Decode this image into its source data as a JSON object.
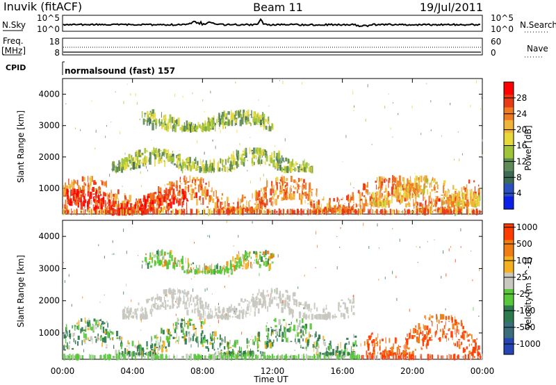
{
  "header": {
    "title": "Inuvik (fitACF)",
    "beam": "Beam 11",
    "date": "19/Jul/2011"
  },
  "status_panels": {
    "nsky": {
      "left_label": "N.Sky",
      "right_label": "N.Search",
      "left_ticks": [
        "10^5",
        "10^0"
      ],
      "right_ticks": [
        "10^5",
        "10^0"
      ]
    },
    "freq": {
      "left_label_1": "Freq.",
      "left_label_2": "[MHz]",
      "right_label": "Nave",
      "left_ticks": [
        "18",
        "8"
      ],
      "right_ticks": [
        "60",
        "0"
      ]
    },
    "cpid": {
      "label": "CPID",
      "value": "normalsound (fast) 157"
    }
  },
  "chart_data": [
    {
      "type": "heatmap",
      "title": "Power",
      "ylabel": "Slant Range [km]",
      "xlabel": "",
      "x_ticks": [
        "00:00",
        "04:00",
        "08:00",
        "12:00",
        "16:00",
        "20:00",
        "00:00"
      ],
      "x_range_hours": [
        0,
        24
      ],
      "y_ticks": [
        1000,
        2000,
        3000,
        4000
      ],
      "ylim": [
        180,
        4500
      ],
      "colorbar": {
        "label": "Power [dB]",
        "ticks": [
          4,
          8,
          12,
          16,
          20,
          24,
          28
        ],
        "range": [
          0,
          32
        ],
        "colors": [
          "#0b1fe6",
          "#2a4fbf",
          "#3d6a55",
          "#5f8b59",
          "#9fc43a",
          "#e7d83c",
          "#f0b43a",
          "#f07a1f",
          "#e83a16",
          "#ff0000"
        ]
      },
      "features": [
        {
          "name": "near_range_main",
          "start": 0.0,
          "end": 23.8,
          "lower_km": 300,
          "upper_km": 1300,
          "level": 24
        },
        {
          "name": "strong_red_band",
          "start": 0.2,
          "end": 7.1,
          "lower_km": 250,
          "upper_km": 900,
          "level": 28
        },
        {
          "name": "mid_band",
          "start": 2.8,
          "end": 14.2,
          "lower_km": 1600,
          "upper_km": 2200,
          "level": 14
        },
        {
          "name": "upper_cluster",
          "start": 4.5,
          "end": 12.0,
          "lower_km": 2900,
          "upper_km": 3400,
          "level": 14
        },
        {
          "name": "late_band",
          "start": 17.6,
          "end": 23.8,
          "lower_km": 500,
          "upper_km": 1300,
          "level": 20
        }
      ]
    },
    {
      "type": "heatmap",
      "title": "Velocity",
      "ylabel": "Slant Range [km]",
      "xlabel": "Time UT",
      "x_ticks": [
        "00:00",
        "04:00",
        "08:00",
        "12:00",
        "16:00",
        "20:00",
        "00:00"
      ],
      "x_range_hours": [
        0,
        24
      ],
      "y_ticks": [
        1000,
        2000,
        3000,
        4000
      ],
      "ylim": [
        180,
        4500
      ],
      "colorbar": {
        "label": "Velocity [m s^-1]",
        "tick_labels": [
          "1000",
          "500",
          "100",
          "25",
          "-25",
          "-100",
          "-500",
          "-1000"
        ],
        "colors": [
          "#2545b2",
          "#3b6e7d",
          "#2c7a4e",
          "#58c83a",
          "#c8c8c0",
          "#f5b022",
          "#ef7d13",
          "#ff3c00"
        ]
      },
      "features": [
        {
          "name": "near_range_mixed",
          "start": 0.0,
          "end": 16.8,
          "lower_km": 350,
          "upper_km": 1400,
          "level": 50
        },
        {
          "name": "gray_band",
          "start": 3.4,
          "end": 16.6,
          "lower_km": 1500,
          "upper_km": 2300,
          "level": 0
        },
        {
          "name": "upper_cluster",
          "start": 4.5,
          "end": 12.0,
          "lower_km": 2900,
          "upper_km": 3500,
          "level": 0
        },
        {
          "name": "late_orange_band",
          "start": 17.2,
          "end": 23.8,
          "lower_km": 350,
          "upper_km": 1500,
          "level": -250
        }
      ]
    }
  ],
  "colors": {
    "frame": "#000000",
    "background": "#ffffff",
    "trace": "#000000"
  }
}
